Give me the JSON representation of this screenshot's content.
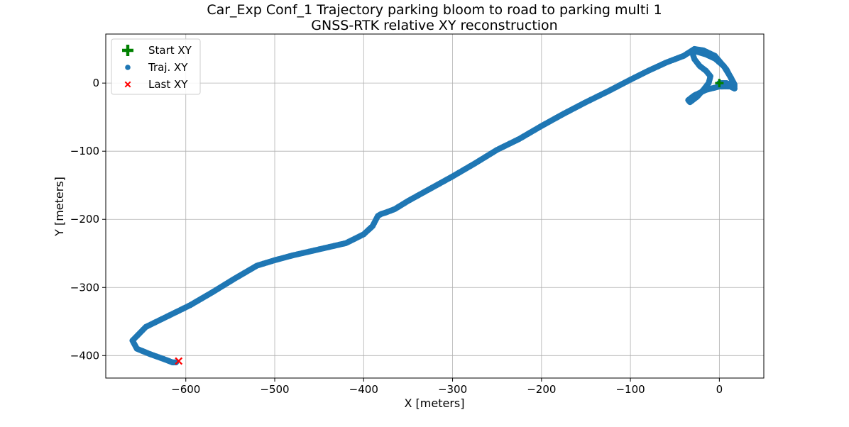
{
  "chart_data": {
    "type": "scatter",
    "title": "Car_Exp Conf_1 Trajectory parking bloom to road to parking multi 1",
    "subtitle": "GNSS-RTK relative XY reconstruction",
    "xlabel": "X [meters]",
    "ylabel": "Y [meters]",
    "xlim": [
      -690,
      50
    ],
    "ylim": [
      -433,
      72
    ],
    "xticks": [
      -600,
      -500,
      -400,
      -300,
      -200,
      -100,
      0
    ],
    "xtick_labels": [
      "−600",
      "−500",
      "−400",
      "−300",
      "−200",
      "−100",
      "0"
    ],
    "yticks": [
      0,
      -100,
      -200,
      -300,
      -400
    ],
    "ytick_labels": [
      "0",
      "−100",
      "−200",
      "−300",
      "−400"
    ],
    "grid": true,
    "legend_position": "top-left",
    "series": [
      {
        "name": "Start XY",
        "marker": "plus",
        "color": "#008000",
        "x": [
          0
        ],
        "y": [
          0
        ]
      },
      {
        "name": "Traj. XY",
        "marker": "circle",
        "color": "#1f77b4",
        "x": [
          0,
          8,
          13,
          17,
          17,
          13,
          5,
          -5,
          -15,
          -25,
          -28,
          -30,
          -28,
          -22,
          -15,
          -10,
          -12,
          -18,
          -25,
          -33,
          -35,
          -28,
          -15,
          0,
          12,
          17,
          16,
          8,
          -5,
          -18,
          -28,
          -40,
          -60,
          -80,
          -100,
          -125,
          -150,
          -175,
          -200,
          -225,
          -250,
          -275,
          -300,
          -325,
          -350,
          -365,
          -375,
          -380,
          -384,
          -390,
          -400,
          -420,
          -450,
          -480,
          -500,
          -520,
          -545,
          -570,
          -595,
          -620,
          -645,
          -660,
          -655,
          -640,
          -625,
          -615,
          -611
        ],
        "y": [
          0,
          0,
          -3,
          -8,
          -2,
          8,
          25,
          36,
          42,
          46,
          46,
          43,
          35,
          25,
          18,
          10,
          0,
          -10,
          -20,
          -28,
          -25,
          -18,
          -10,
          -5,
          -5,
          -8,
          0,
          20,
          40,
          48,
          50,
          40,
          30,
          18,
          5,
          -12,
          -28,
          -45,
          -63,
          -82,
          -98,
          -118,
          -137,
          -155,
          -173,
          -185,
          -190,
          -192,
          -195,
          -210,
          -222,
          -235,
          -244,
          -253,
          -260,
          -268,
          -287,
          -307,
          -326,
          -342,
          -358,
          -378,
          -390,
          -398,
          -405,
          -410,
          -410
        ]
      },
      {
        "name": "Last XY",
        "marker": "x",
        "color": "#ff0000",
        "x": [
          -608
        ],
        "y": [
          -408
        ]
      }
    ]
  }
}
